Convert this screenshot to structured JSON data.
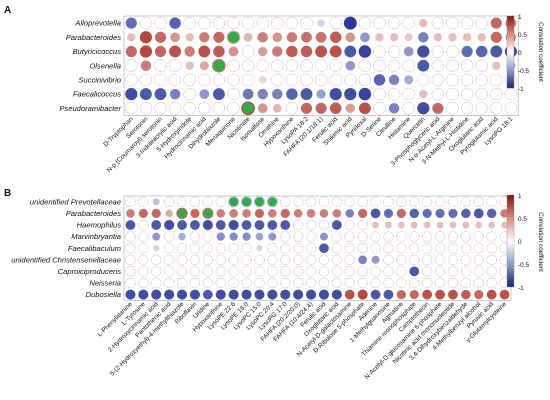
{
  "figure": {
    "colors": {
      "negative": "#1f2f8f",
      "zero": "#ffffff",
      "positive": "#a8271f",
      "highlight": "#35a84a",
      "empty_circle_stroke": "#d8a8a8",
      "frame": "#aaaaaa"
    }
  },
  "chart_data": [
    {
      "type": "heatmap",
      "panel_label": "A",
      "rows": [
        "Alloprevotella",
        "Parabacteroides",
        "Butyricicoccus",
        "Olsenella",
        "Succinivibrio",
        "Faecalicoccus",
        "Pseudoramibacter"
      ],
      "columns": [
        "D-Tryptophan",
        "Serotonin",
        "N-p (Coumaroyl) serotonin",
        "3-Indoleacrylic acid",
        "5-Hydroxyindole",
        "Hydrocinnamic acid",
        "Dihydrobiazole",
        "Menaquinone",
        "Nicotinate",
        "Isomaltose",
        "Ornithine",
        "Hypoxanthine",
        "LysoPA 18:2",
        "FAHFA (20:1/18:1)",
        "Ferulic acid",
        "Shikimic acid",
        "Pyridoxal",
        "D-Serine",
        "Citrulline",
        "Histamine",
        "Quercetin",
        "3-Phosphoglyceric acid",
        "N-α-Acetyl-L-Arginine",
        "3-N-Methyl-L-Histidine",
        "Oxoglutaric acid",
        "Pyroglutamic acid",
        "LysoPG 18:1"
      ],
      "values": [
        [
          -0.7,
          0.05,
          0.05,
          -0.75,
          0.05,
          0.05,
          0.05,
          0.05,
          0.05,
          0.05,
          0.05,
          0.05,
          0.05,
          -0.2,
          0.05,
          -0.95,
          0.05,
          0.05,
          0.05,
          0.05,
          0.3,
          0.05,
          0.05,
          0.05,
          0.05,
          0.7,
          0.65
        ],
        [
          0.3,
          0.85,
          0.7,
          0.5,
          0.3,
          0.6,
          0.7,
          0.4,
          0.35,
          0.6,
          0.5,
          0.6,
          0.65,
          0.65,
          0.75,
          0.5,
          -0.5,
          0.3,
          0.3,
          0.25,
          -0.6,
          0.3,
          0.3,
          0.3,
          0.3,
          0.7,
          0.6
        ],
        [
          0.7,
          0.85,
          0.7,
          0.8,
          0.6,
          0.8,
          0.75,
          0.5,
          0.05,
          0.45,
          0.6,
          0.75,
          0.75,
          0.8,
          0.8,
          -0.8,
          -0.9,
          0.05,
          0.05,
          -0.5,
          -0.85,
          0.05,
          0.05,
          -0.7,
          -0.75,
          -0.8,
          -0.85
        ],
        [
          0.05,
          0.6,
          0.05,
          0.05,
          0.3,
          0.4,
          0.65,
          0.05,
          0.05,
          0.05,
          0.05,
          0.05,
          0.05,
          0.05,
          0.05,
          -0.5,
          0.05,
          0.05,
          0.05,
          0.05,
          -0.8,
          0.05,
          0.05,
          0.05,
          0.05,
          0.3,
          0.4
        ],
        [
          0.05,
          0.05,
          0.05,
          0.05,
          0.05,
          0.05,
          0.05,
          0.05,
          0.05,
          0.2,
          0.05,
          0.05,
          0.05,
          0.05,
          0.05,
          0.05,
          0.05,
          -0.75,
          -0.6,
          -0.4,
          0.05,
          0.05,
          0.05,
          0.05,
          0.05,
          0.05,
          0.05
        ],
        [
          -0.85,
          -0.8,
          -0.8,
          -0.6,
          0.05,
          -0.5,
          -0.8,
          0.05,
          -0.65,
          -0.6,
          -0.6,
          -0.75,
          -0.8,
          -0.45,
          -0.85,
          -0.85,
          -0.9,
          0.05,
          0.05,
          0.05,
          0.3,
          0.05,
          0.05,
          0.05,
          0.05,
          0.05,
          0.05
        ],
        [
          0.05,
          0.05,
          0.05,
          0.05,
          0.05,
          0.05,
          0.05,
          0.05,
          0.85,
          0.5,
          0.35,
          0.05,
          0.7,
          0.7,
          0.75,
          0.45,
          0.8,
          0.05,
          -0.6,
          0.05,
          -0.85,
          0.7,
          0.05,
          0.05,
          0.05,
          0.05,
          0.05
        ]
      ],
      "highlighted": [
        [
          1,
          7
        ],
        [
          3,
          6
        ],
        [
          6,
          8
        ]
      ],
      "colorbar": {
        "title": "Correlation coefficient",
        "ticks": [
          1,
          0.5,
          0,
          -0.5,
          -1
        ],
        "range": [
          -1,
          1
        ]
      }
    },
    {
      "type": "heatmap",
      "panel_label": "B",
      "rows": [
        "unidentified Prevotellaceae",
        "Parabacteroides",
        "Haemophilus",
        "Marvinbryantia",
        "Faecalibaculum",
        "unidentified Christensenellaceae",
        "Caproiciproducens",
        "Neisseria",
        "Dubosiella"
      ],
      "columns": [
        "L-Phenylalanine",
        "L-Tyrosine",
        "2-Hydroxycinnamic acid",
        "Pantothenic acid",
        "5-(2-Hydroxyethyl)-4-methylthiazole",
        "Riboflavin",
        "Uridine",
        "Hypoxanthine",
        "LysoPE 22:6",
        "LysoPE 18:0",
        "LysoPC 15:0",
        "LysoPC 20:4",
        "LysoPG 17:0",
        "FAHFA (20:2/20:0)",
        "FAHFA (10:4/24:4)",
        "Ferulic acid",
        "Oxoglutaric acid",
        "N-Acetyl-D-galactosamine",
        "D-Ribulose 5-phosphate",
        "Adenine",
        "1-Methylguanosine",
        "Agmatine",
        "Thiamine monophosphate",
        "Camptothecin",
        "N-Acetyl-D-glucosamine 6-phosphate",
        "Nicotinic acid mononucleotide",
        "3,4-Dihydroxybenzaldehyde",
        "4-Methylbenzyl alcohol",
        "Pyruvic acid",
        "γ-Glutamylcysteine"
      ],
      "values": [
        [
          0.05,
          0.05,
          -0.3,
          0.05,
          0.05,
          0.05,
          0.05,
          0.05,
          -0.3,
          -0.3,
          -0.3,
          -0.3,
          0.05,
          0.05,
          0.05,
          0.05,
          0.05,
          0.05,
          0.05,
          0.05,
          0.05,
          0.05,
          0.05,
          0.05,
          0.05,
          0.05,
          0.05,
          0.05,
          0.05,
          0.05
        ],
        [
          0.6,
          0.7,
          0.7,
          0.4,
          0.7,
          0.7,
          0.6,
          0.6,
          0.6,
          0.6,
          0.7,
          0.6,
          0.7,
          0.6,
          0.6,
          0.6,
          0.6,
          -0.6,
          0.7,
          -0.8,
          -0.7,
          0.7,
          -0.75,
          -0.7,
          -0.7,
          -0.7,
          -0.75,
          -0.8,
          -0.75,
          0.6
        ],
        [
          -0.8,
          0.05,
          -0.8,
          -0.85,
          -0.8,
          -0.8,
          -0.85,
          -0.8,
          -0.85,
          -0.8,
          -0.8,
          -0.8,
          -0.8,
          0.05,
          0.05,
          0.05,
          -0.8,
          0.05,
          0.05,
          0.3,
          0.3,
          0.3,
          0.3,
          0.3,
          0.3,
          0.3,
          0.3,
          0.3,
          0.3,
          0.3
        ],
        [
          0.05,
          0.05,
          -0.5,
          0.05,
          -0.4,
          0.05,
          0.05,
          -0.55,
          -0.55,
          -0.55,
          -0.45,
          -0.5,
          0.05,
          0.05,
          0.05,
          -0.5,
          0.05,
          0.05,
          0.05,
          0.05,
          0.05,
          0.05,
          0.05,
          0.05,
          0.05,
          0.05,
          0.05,
          0.05,
          0.05,
          0.05
        ],
        [
          0.05,
          0.05,
          -0.2,
          0.05,
          0.05,
          0.05,
          0.05,
          0.05,
          0.05,
          0.05,
          -0.2,
          0.05,
          0.05,
          0.05,
          0.05,
          -0.8,
          0.05,
          0.05,
          0.05,
          0.05,
          0.05,
          0.05,
          0.05,
          0.05,
          0.05,
          0.05,
          0.05,
          0.05,
          0.05,
          0.05
        ],
        [
          0.05,
          0.05,
          0.05,
          0.05,
          0.05,
          0.05,
          0.05,
          0.05,
          0.05,
          0.05,
          0.05,
          0.05,
          0.05,
          0.05,
          0.05,
          0.05,
          0.05,
          0.05,
          -0.6,
          -0.5,
          0.05,
          0.05,
          0.05,
          0.05,
          0.05,
          0.05,
          0.05,
          0.05,
          0.05,
          0.05
        ],
        [
          0.05,
          0.05,
          0.05,
          0.05,
          0.05,
          0.05,
          0.05,
          0.05,
          0.05,
          0.05,
          0.05,
          0.05,
          0.05,
          0.05,
          0.05,
          0.05,
          0.05,
          0.05,
          0.05,
          0.05,
          0.05,
          0.05,
          -0.8,
          0.05,
          0.05,
          0.05,
          0.05,
          0.05,
          0.05,
          0.05
        ],
        [
          0.05,
          0.05,
          0.05,
          0.05,
          0.05,
          0.05,
          0.05,
          0.05,
          0.05,
          0.05,
          0.05,
          0.05,
          0.05,
          0.05,
          0.05,
          0.05,
          0.05,
          0.05,
          0.05,
          0.05,
          0.05,
          0.05,
          0.05,
          0.05,
          0.05,
          0.05,
          0.05,
          0.05,
          0.05,
          0.05
        ],
        [
          -0.85,
          -0.85,
          -0.85,
          -0.85,
          -0.85,
          -0.85,
          -0.8,
          -0.85,
          -0.85,
          -0.85,
          -0.85,
          -0.85,
          -0.85,
          -0.85,
          -0.85,
          -0.85,
          -0.85,
          0.8,
          0.85,
          -0.8,
          -0.8,
          0.7,
          0.7,
          0.8,
          0.8,
          0.8,
          0.75,
          0.7,
          0.8,
          0.8
        ]
      ],
      "highlighted": [
        [
          0,
          8
        ],
        [
          0,
          9
        ],
        [
          0,
          10
        ],
        [
          0,
          11
        ],
        [
          1,
          4
        ],
        [
          1,
          6
        ]
      ],
      "colorbar": {
        "title": "Correlation coefficient",
        "ticks": [
          1,
          0.5,
          0,
          -0.5,
          -1
        ],
        "range": [
          -1,
          1
        ]
      }
    }
  ]
}
